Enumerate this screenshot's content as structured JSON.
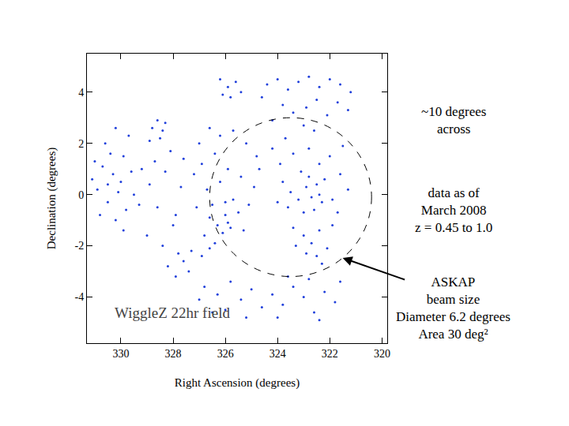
{
  "chart_data": {
    "type": "scatter",
    "xlabel": "Right Ascension (degrees)",
    "ylabel": "Declination (degrees)",
    "label": "WiggleZ 22hr field",
    "color": "#1f3fdb",
    "marker": "dot",
    "grid": false,
    "xlim": [
      331.3,
      319.8
    ],
    "xticks": [
      330,
      328,
      326,
      324,
      322,
      320
    ],
    "ylim": [
      -5.8,
      5.5
    ],
    "yticks": [
      -4,
      -2,
      0,
      2,
      4
    ],
    "beam_circle": {
      "ra": 323.5,
      "dec": -0.1,
      "radius": 3.1
    },
    "notes": [
      [
        "~10 degrees",
        "across"
      ],
      [
        "data as of",
        "March 2008",
        "z = 0.45 to 1.0"
      ],
      [
        "ASKAP",
        "beam size",
        "Diameter 6.2 degrees",
        "Area 30 deg²"
      ]
    ],
    "x": [
      331.1,
      330.9,
      330.7,
      330.5,
      330.3,
      330.1,
      329.9,
      330.6,
      330.2,
      329.8,
      330.0,
      329.6,
      330.4,
      330.8,
      329.7,
      330.2,
      329.9,
      330.5,
      331.0,
      329.5,
      328.8,
      328.5,
      328.3,
      328.6,
      328.9,
      328.4,
      329.2,
      328.9,
      328.6,
      328.3,
      328.0,
      327.7,
      329.0,
      328.4,
      327.8,
      327.6,
      328.1,
      329.3,
      327.9,
      328.7,
      326.2,
      325.9,
      325.6,
      325.8,
      326.1,
      325.4,
      327.0,
      326.6,
      326.2,
      325.7,
      325.2,
      324.8,
      326.9,
      326.4,
      325.9,
      325.4,
      324.9,
      326.7,
      326.2,
      325.7,
      327.1,
      326.6,
      326.3,
      326.0,
      325.8,
      325.5,
      326.8,
      326.4,
      326.1,
      325.9,
      325.3,
      326.5,
      326.0,
      327.2,
      324.7,
      325.1,
      324.4,
      324.0,
      323.6,
      323.2,
      322.8,
      322.4,
      322.0,
      321.6,
      321.2,
      323.8,
      323.4,
      322.9,
      322.5,
      322.1,
      321.7,
      321.3,
      324.2,
      323.0,
      322.6,
      324.6,
      324.2,
      323.9,
      323.7,
      323.4,
      323.1,
      322.8,
      322.4,
      322.0,
      321.6,
      321.3,
      323.8,
      323.5,
      323.2,
      322.9,
      322.7,
      322.5,
      322.3,
      322.6,
      322.2,
      321.9,
      321.7,
      323.0,
      323.6,
      324.0,
      322.4,
      322.8,
      321.5,
      323.4,
      323.0,
      322.7,
      322.4,
      322.1,
      322.5,
      322.9,
      321.9,
      323.3,
      322.3,
      326.8,
      326.3,
      325.8,
      325.4,
      325.0,
      324.6,
      324.2,
      323.8,
      323.4,
      323.0,
      322.6,
      322.2,
      321.8,
      326.0,
      325.2,
      324.0,
      327.0,
      326.5,
      323.6,
      322.8,
      321.6,
      322.4,
      328.2,
      327.9,
      327.6,
      327.3,
      326.9,
      326.6,
      327.4
    ],
    "y": [
      0.6,
      0.2,
      1.1,
      -0.3,
      0.8,
      0.1,
      1.5,
      2.0,
      -1.0,
      -0.6,
      0.5,
      0.9,
      1.6,
      -0.8,
      2.3,
      2.6,
      -1.4,
      0.4,
      1.3,
      0.0,
      2.6,
      2.2,
      2.8,
      2.9,
      2.1,
      2.5,
      1.0,
      0.4,
      -0.5,
      0.9,
      -1.2,
      0.3,
      -1.6,
      -2.0,
      -2.3,
      1.4,
      1.7,
      -0.4,
      -0.8,
      1.3,
      4.5,
      4.2,
      4.4,
      3.8,
      3.9,
      4.0,
      2.0,
      2.6,
      2.3,
      2.5,
      2.0,
      1.5,
      1.2,
      1.6,
      1.0,
      0.7,
      0.3,
      0.2,
      0.5,
      -0.2,
      -0.5,
      -0.9,
      -1.2,
      -0.8,
      -1.3,
      -0.7,
      -1.6,
      -1.9,
      -1.5,
      -1.1,
      -1.4,
      -0.4,
      -0.3,
      0.8,
      1.0,
      -0.4,
      4.3,
      4.5,
      4.1,
      4.4,
      4.6,
      4.2,
      4.5,
      4.3,
      4.0,
      3.5,
      3.2,
      3.4,
      3.7,
      3.1,
      3.6,
      3.3,
      2.9,
      2.7,
      2.5,
      3.8,
      1.8,
      1.2,
      2.2,
      1.6,
      0.9,
      1.8,
      1.2,
      1.5,
      0.8,
      0.2,
      0.5,
      0.1,
      -0.2,
      0.3,
      -0.1,
      0.4,
      -0.3,
      -0.6,
      0.6,
      -0.2,
      -0.7,
      -0.7,
      -0.5,
      -0.3,
      0.0,
      0.7,
      1.9,
      -1.3,
      -1.6,
      -1.9,
      -1.4,
      -2.1,
      -2.4,
      -2.3,
      -1.2,
      -2.0,
      -2.7,
      -3.6,
      -3.9,
      -3.4,
      -4.1,
      -3.7,
      -4.4,
      -3.9,
      -4.3,
      -3.6,
      -4.0,
      -4.6,
      -3.8,
      -4.2,
      -4.5,
      -4.8,
      -4.8,
      -4.1,
      -4.6,
      -3.2,
      -3.3,
      -3.4,
      -4.9,
      -2.8,
      -3.2,
      -2.6,
      -2.2,
      -2.4,
      -2.1,
      -3.0
    ]
  }
}
